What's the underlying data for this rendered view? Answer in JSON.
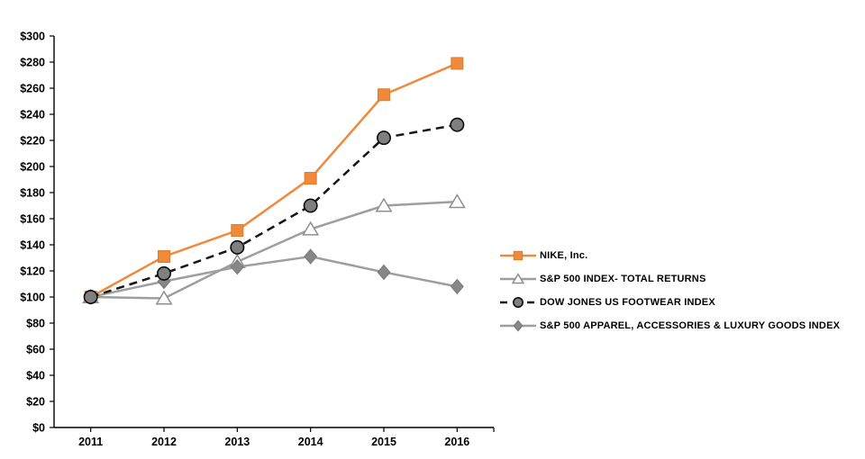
{
  "chart_data": {
    "type": "line",
    "title": "",
    "xlabel": "",
    "ylabel": "",
    "categories": [
      "2011",
      "2012",
      "2013",
      "2014",
      "2015",
      "2016"
    ],
    "series": [
      {
        "name": "NIKE, Inc.",
        "values": [
          100,
          131,
          151,
          191,
          255,
          279
        ],
        "line_color": "#EF8A3C",
        "line_style": "solid",
        "marker": "square",
        "marker_fill": "#EF8A3C",
        "marker_stroke": "#E07B26"
      },
      {
        "name": "S&P 500 INDEX- TOTAL RETURNS",
        "values": [
          100,
          99,
          127,
          152,
          170,
          173
        ],
        "line_color": "#9E9E9E",
        "line_style": "solid",
        "marker": "triangle",
        "marker_fill": "#FFFFFF",
        "marker_stroke": "#8F8F8F"
      },
      {
        "name": "DOW JONES US FOOTWEAR INDEX",
        "values": [
          100,
          118,
          138,
          170,
          222,
          232
        ],
        "line_color": "#141414",
        "line_style": "dashed",
        "marker": "circle",
        "marker_fill": "#7F7F7F",
        "marker_stroke": "#0D0D0D"
      },
      {
        "name": "S&P 500 APPAREL, ACCESSORIES & LUXURY GOODS INDEX",
        "values": [
          100,
          112,
          123,
          131,
          119,
          108
        ],
        "line_color": "#9E9E9E",
        "line_style": "solid",
        "marker": "diamond",
        "marker_fill": "#878787",
        "marker_stroke": "#7A7A7A"
      }
    ],
    "ylim": [
      0,
      300
    ],
    "ytick_step": 20,
    "ytick_prefix": "$",
    "grid": false,
    "legend_position": "right",
    "axis_color": "#000000",
    "draw_order": [
      0,
      1,
      3,
      2
    ]
  }
}
